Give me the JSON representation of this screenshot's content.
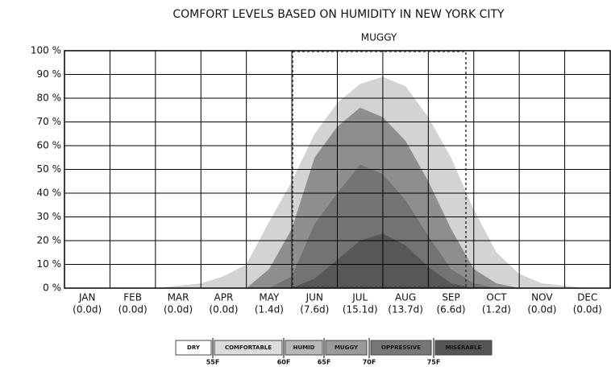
{
  "chart_data": {
    "type": "area",
    "title": "COMFORT LEVELS BASED ON HUMIDITY IN NEW YORK CITY",
    "annotation": "MUGGY",
    "x": [
      0,
      0.5,
      1,
      1.5,
      2,
      2.5,
      3,
      3.5,
      4,
      4.5,
      5,
      5.5,
      6,
      6.5,
      7,
      7.5,
      8,
      8.5,
      9,
      9.5,
      10,
      10.5,
      11,
      11.5,
      12
    ],
    "xlim": [
      0,
      12
    ],
    "xticks": [
      0,
      1,
      2,
      3,
      4,
      5,
      6,
      7,
      8,
      9,
      10,
      11,
      12
    ],
    "ylim": [
      0,
      100
    ],
    "yticks": [
      {
        "value": 0,
        "label": "0 %"
      },
      {
        "value": 10,
        "label": "10 %"
      },
      {
        "value": 20,
        "label": "20 %"
      },
      {
        "value": 30,
        "label": "30 %"
      },
      {
        "value": 40,
        "label": "40 %"
      },
      {
        "value": 50,
        "label": "50 %"
      },
      {
        "value": 60,
        "label": "60 %"
      },
      {
        "value": 70,
        "label": "70 %"
      },
      {
        "value": 80,
        "label": "80 %"
      },
      {
        "value": 90,
        "label": "90 %"
      },
      {
        "value": 100,
        "label": "100 %"
      }
    ],
    "grid": true,
    "months": [
      "JAN",
      "FEB",
      "MAR",
      "APR",
      "MAY",
      "JUN",
      "JUL",
      "AUG",
      "SEP",
      "OCT",
      "NOV",
      "DEC"
    ],
    "month_days": [
      "(0.0d)",
      "(0.0d)",
      "(0.0d)",
      "(0.0d)",
      "(1.4d)",
      "(7.6d)",
      "(15.1d)",
      "(13.7d)",
      "(6.6d)",
      "(1.2d)",
      "(0.0d)",
      "(0.0d)"
    ],
    "series": [
      {
        "color": "#d3d3d3",
        "values": [
          0,
          0,
          0,
          0,
          0,
          1,
          2,
          5,
          10,
          28,
          45,
          65,
          78,
          86,
          89,
          85,
          72,
          55,
          33,
          15,
          6,
          2,
          1,
          0,
          0
        ]
      },
      {
        "color": "#8e8e8e",
        "values": [
          0,
          0,
          0,
          0,
          0,
          0,
          0,
          0,
          0,
          8,
          25,
          55,
          68,
          76,
          72,
          62,
          45,
          25,
          8,
          2,
          0,
          0,
          0,
          0,
          0
        ]
      },
      {
        "color": "#737373",
        "values": [
          0,
          0,
          0,
          0,
          0,
          0,
          0,
          0,
          0,
          0,
          5,
          27,
          40,
          52,
          48,
          37,
          22,
          8,
          2,
          0,
          0,
          0,
          0,
          0,
          0
        ]
      },
      {
        "color": "#575757",
        "values": [
          0,
          0,
          0,
          0,
          0,
          0,
          0,
          0,
          0,
          0,
          0,
          4,
          12,
          20,
          23,
          18,
          9,
          2,
          0,
          0,
          0,
          0,
          0,
          0,
          0
        ]
      }
    ],
    "legend": [
      {
        "label": "DRY",
        "color": "#ffffff"
      },
      {
        "label": "COMFORTABLE",
        "color": "#dcdcdc"
      },
      {
        "label": "HUMID",
        "color": "#b8b8b8"
      },
      {
        "label": "MUGGY",
        "color": "#9a9a9a"
      },
      {
        "label": "OPPRESSIVE",
        "color": "#777777"
      },
      {
        "label": "MISERABLE",
        "color": "#555555"
      }
    ],
    "thresholds": [
      "55F",
      "60F",
      "65F",
      "70F",
      "75F"
    ]
  }
}
